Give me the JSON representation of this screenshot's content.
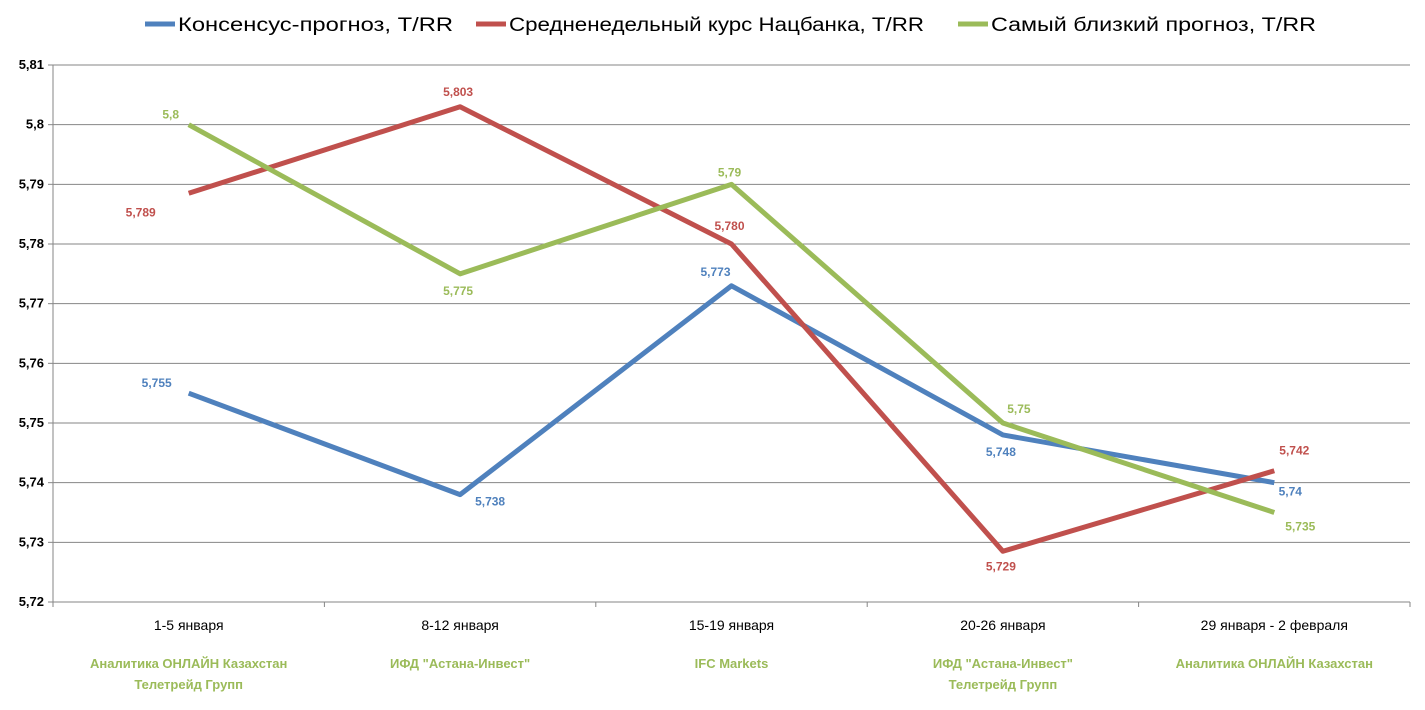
{
  "chart_data": {
    "type": "line",
    "title": "",
    "xlabel": "",
    "ylabel": "",
    "categories": [
      "1-5 января",
      "8-12 января",
      "15-19 января",
      "20-26 января",
      "29 января - 2 февраля"
    ],
    "sources": [
      [
        "Аналитика ОНЛАЙН Казахстан",
        "Телетрейд Групп"
      ],
      [
        "ИФД \"Астана-Инвест\""
      ],
      [
        "IFC Markets"
      ],
      [
        "ИФД \"Астана-Инвест\"",
        "Телетрейд Групп"
      ],
      [
        "Аналитика ОНЛАЙН Казахстан"
      ]
    ],
    "ylim": [
      5.72,
      5.81
    ],
    "yticks": [
      5.72,
      5.73,
      5.74,
      5.75,
      5.76,
      5.77,
      5.78,
      5.79,
      5.8,
      5.81
    ],
    "ytick_labels": [
      "5,72",
      "5,73",
      "5,74",
      "5,75",
      "5,76",
      "5,77",
      "5,78",
      "5,79",
      "5,8",
      "5,81"
    ],
    "grid": true,
    "legend": "top",
    "series": [
      {
        "name": "Консенсус-прогноз, Т/RR",
        "color": "#4f81bd",
        "values": [
          5.755,
          5.738,
          5.773,
          5.748,
          5.74
        ],
        "labels": [
          "5,755",
          "5,738",
          "5,773",
          "5,748",
          "5,74"
        ]
      },
      {
        "name": "Средненедельный курс Нацбанка, Т/RR",
        "color": "#c0504d",
        "values": [
          5.7885,
          5.803,
          5.78,
          5.7285,
          5.742
        ],
        "labels": [
          "5,789",
          "5,803",
          "5,780",
          "5,729",
          "5,742"
        ]
      },
      {
        "name": "Самый близкий прогноз, Т/RR",
        "color": "#9bbb59",
        "values": [
          5.8,
          5.775,
          5.79,
          5.75,
          5.735
        ],
        "labels": [
          "5,8",
          "5,775",
          "5,79",
          "5,75",
          "5,735"
        ]
      }
    ],
    "source_color": "#9bbb59"
  }
}
